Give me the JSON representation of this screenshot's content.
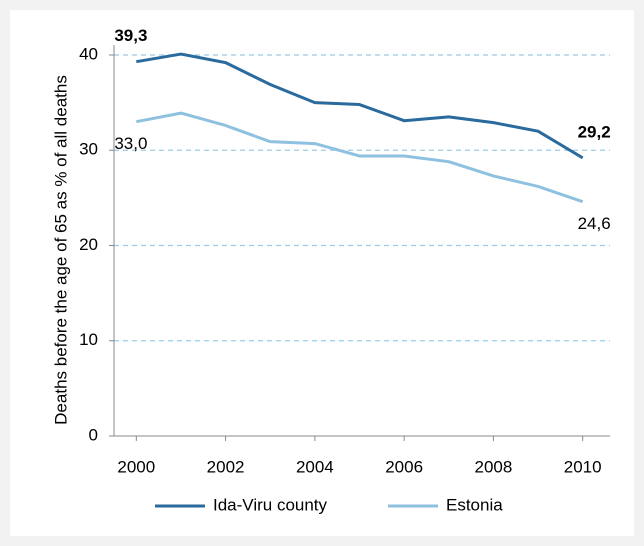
{
  "chart_data": {
    "type": "line",
    "y_label": "Deaths before the age of 65 as % of all deaths",
    "x": [
      2000,
      2001,
      2002,
      2003,
      2004,
      2005,
      2006,
      2007,
      2008,
      2009,
      2010
    ],
    "series": [
      {
        "name": "Ida-Viru county",
        "color": "#2a6a9c",
        "values": [
          39.3,
          40.1,
          39.2,
          36.9,
          35.0,
          34.8,
          33.1,
          33.5,
          32.9,
          32.0,
          29.2
        ],
        "value_labels": [
          "39,3",
          null,
          null,
          null,
          null,
          null,
          null,
          null,
          null,
          null,
          "29,2"
        ]
      },
      {
        "name": "Estonia",
        "color": "#8ec1e0",
        "values": [
          33.0,
          33.9,
          32.6,
          30.9,
          30.7,
          29.4,
          29.4,
          28.8,
          27.3,
          26.2,
          24.6
        ],
        "value_labels": [
          "33,0",
          null,
          null,
          null,
          null,
          null,
          null,
          null,
          null,
          null,
          "24,6"
        ]
      }
    ],
    "xlim": [
      1999.5,
      2010.5
    ],
    "xticks": [
      2000,
      2002,
      2004,
      2006,
      2008,
      2010
    ],
    "ylim": [
      0,
      40
    ],
    "yticks": [
      0,
      10,
      20,
      30,
      40
    ],
    "grid": true,
    "legend": "bottom"
  }
}
